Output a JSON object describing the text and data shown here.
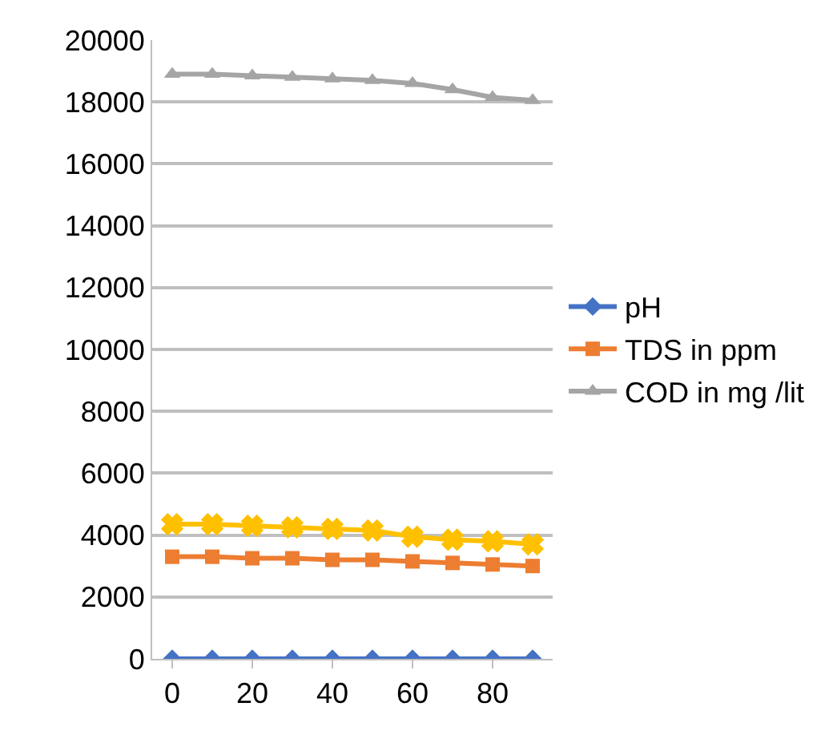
{
  "chart_data": {
    "type": "line",
    "x": [
      0,
      10,
      20,
      30,
      40,
      50,
      60,
      70,
      80,
      90
    ],
    "xlim": [
      -5,
      95
    ],
    "xticks": [
      0,
      20,
      40,
      60,
      80
    ],
    "ylim": [
      0,
      20000
    ],
    "yticks": [
      0,
      2000,
      4000,
      6000,
      8000,
      10000,
      12000,
      14000,
      16000,
      18000,
      20000
    ],
    "grid": "y",
    "legend": "right",
    "series": [
      {
        "name": "pH",
        "color": "#4472c4",
        "marker": "diamond",
        "values": [
          0,
          0,
          0,
          0,
          0,
          0,
          0,
          0,
          0,
          0
        ]
      },
      {
        "name": "TDS in ppm",
        "color": "#ed7d31",
        "marker": "square",
        "values": [
          3300,
          3300,
          3250,
          3250,
          3200,
          3200,
          3150,
          3100,
          3050,
          3000
        ]
      },
      {
        "name": "COD in mg /lit",
        "color": "#a5a5a5",
        "marker": "triangle",
        "values": [
          18900,
          18900,
          18850,
          18800,
          18750,
          18700,
          18600,
          18400,
          18150,
          18050
        ]
      },
      {
        "color": "#ffc000",
        "marker": "cross",
        "values": [
          4350,
          4350,
          4300,
          4250,
          4200,
          4150,
          3950,
          3850,
          3800,
          3700
        ]
      }
    ]
  }
}
